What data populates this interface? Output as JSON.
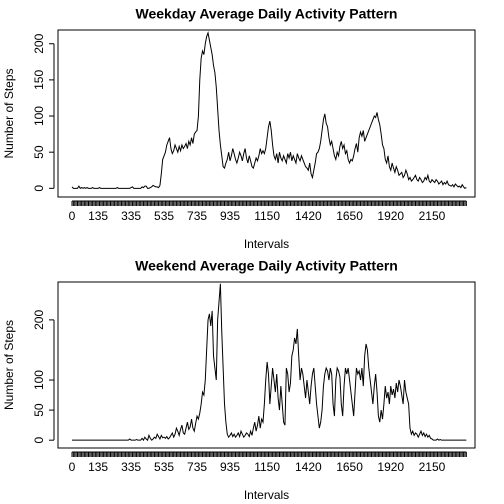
{
  "chart_data": [
    {
      "type": "line",
      "title": "Weekday Average Daily Activity Pattern",
      "x_label": "Intervals",
      "y_label": "Number of Steps",
      "color": "#000000",
      "categories": [
        "0",
        null,
        null,
        null,
        null,
        null,
        null,
        null,
        null,
        null,
        null,
        null,
        null,
        null,
        null,
        null,
        null,
        null,
        null,
        "135",
        null,
        null,
        null,
        null,
        null,
        null,
        null,
        null,
        null,
        null,
        null,
        null,
        null,
        null,
        null,
        null,
        null,
        null,
        null,
        null,
        null,
        null,
        null,
        "335",
        null,
        null,
        null,
        null,
        null,
        null,
        null,
        null,
        null,
        null,
        null,
        null,
        null,
        null,
        null,
        null,
        null,
        null,
        null,
        null,
        null,
        null,
        null,
        "535",
        null,
        null,
        null,
        null,
        null,
        null,
        null,
        null,
        null,
        null,
        null,
        null,
        null,
        null,
        null,
        null,
        null,
        null,
        null,
        null,
        null,
        null,
        null,
        "735",
        null,
        null,
        null,
        null,
        null,
        null,
        null,
        null,
        null,
        null,
        null,
        null,
        null,
        null,
        null,
        null,
        null,
        null,
        null,
        null,
        null,
        null,
        null,
        "935",
        null,
        null,
        null,
        null,
        null,
        null,
        null,
        null,
        null,
        null,
        null,
        null,
        null,
        null,
        null,
        null,
        null,
        null,
        null,
        null,
        null,
        null,
        null,
        null,
        null,
        null,
        "1150",
        null,
        null,
        null,
        null,
        null,
        null,
        null,
        null,
        null,
        null,
        null,
        null,
        null,
        null,
        null,
        null,
        null,
        null,
        null,
        null,
        null,
        null,
        null,
        null,
        null,
        null,
        null,
        null,
        null,
        "1420",
        null,
        null,
        null,
        null,
        null,
        null,
        null,
        null,
        null,
        null,
        null,
        null,
        null,
        null,
        null,
        null,
        null,
        null,
        null,
        null,
        null,
        null,
        null,
        null,
        null,
        null,
        null,
        null,
        null,
        "1650",
        null,
        null,
        null,
        null,
        null,
        null,
        null,
        null,
        null,
        null,
        null,
        null,
        null,
        null,
        null,
        null,
        null,
        null,
        null,
        null,
        null,
        null,
        null,
        null,
        null,
        null,
        null,
        null,
        null,
        "1920",
        null,
        null,
        null,
        null,
        null,
        null,
        null,
        null,
        null,
        null,
        null,
        null,
        null,
        null,
        null,
        null,
        null,
        null,
        null,
        null,
        null,
        null,
        null,
        null,
        null,
        null,
        null,
        null,
        null,
        "2150",
        null,
        null,
        null,
        null,
        null,
        null,
        null,
        null,
        null,
        null,
        null,
        null,
        null,
        null,
        null,
        null,
        null,
        null,
        null,
        null,
        null,
        null,
        null,
        null,
        null
      ],
      "values": [
        2,
        0,
        0,
        0,
        0,
        3,
        0,
        1,
        0,
        1,
        0,
        1,
        0,
        0,
        0,
        1,
        0,
        0,
        0,
        0,
        1,
        0,
        0,
        0,
        0,
        0,
        0,
        0,
        0,
        0,
        0,
        0,
        0,
        1,
        0,
        0,
        0,
        0,
        0,
        0,
        0,
        0,
        0,
        1,
        2,
        0,
        0,
        0,
        0,
        0,
        0,
        2,
        1,
        3,
        3,
        0,
        0,
        1,
        2,
        4,
        3,
        2,
        2,
        1,
        4,
        20,
        40,
        45,
        50,
        60,
        65,
        70,
        55,
        48,
        52,
        60,
        55,
        50,
        58,
        52,
        60,
        55,
        58,
        62,
        55,
        65,
        60,
        70,
        62,
        75,
        78,
        80,
        100,
        150,
        180,
        190,
        185,
        200,
        210,
        215,
        205,
        195,
        185,
        170,
        160,
        140,
        110,
        80,
        60,
        45,
        30,
        28,
        35,
        40,
        50,
        38,
        45,
        55,
        48,
        40,
        35,
        42,
        50,
        45,
        38,
        48,
        55,
        42,
        35,
        45,
        38,
        30,
        28,
        35,
        42,
        38,
        45,
        55,
        48,
        52,
        48,
        55,
        70,
        85,
        93,
        80,
        60,
        45,
        40,
        48,
        35,
        50,
        42,
        38,
        45,
        40,
        35,
        48,
        42,
        50,
        38,
        45,
        40,
        35,
        48,
        42,
        38,
        45,
        40,
        35,
        30,
        28,
        25,
        35,
        20,
        15,
        25,
        35,
        48,
        50,
        55,
        65,
        80,
        95,
        103,
        90,
        85,
        70,
        60,
        65,
        55,
        45,
        40,
        50,
        45,
        58,
        65,
        55,
        60,
        48,
        52,
        40,
        35,
        40,
        38,
        45,
        55,
        62,
        50,
        70,
        78,
        72,
        80,
        65,
        70,
        75,
        80,
        85,
        90,
        95,
        100,
        98,
        105,
        95,
        88,
        75,
        60,
        55,
        40,
        35,
        45,
        30,
        25,
        35,
        28,
        22,
        30,
        25,
        18,
        20,
        22,
        15,
        18,
        25,
        20,
        12,
        15,
        10,
        12,
        15,
        18,
        12,
        10,
        15,
        12,
        8,
        10,
        15,
        12,
        18,
        10,
        8,
        12,
        10,
        8,
        12,
        10,
        6,
        8,
        10,
        5,
        8,
        6,
        10,
        5,
        4,
        3,
        5,
        2,
        6,
        4,
        2,
        3,
        1,
        5,
        2,
        0,
        1
      ],
      "ylim": [
        -12,
        219
      ],
      "yticks": [
        0,
        50,
        100,
        150,
        200
      ]
    },
    {
      "type": "line",
      "title": "Weekend Average Daily Activity Pattern",
      "x_label": "Intervals",
      "y_label": "Number of Steps",
      "color": "#000000",
      "categories": [
        "0",
        null,
        null,
        null,
        null,
        null,
        null,
        null,
        null,
        null,
        null,
        null,
        null,
        null,
        null,
        null,
        null,
        null,
        null,
        "135",
        null,
        null,
        null,
        null,
        null,
        null,
        null,
        null,
        null,
        null,
        null,
        null,
        null,
        null,
        null,
        null,
        null,
        null,
        null,
        null,
        null,
        null,
        null,
        "335",
        null,
        null,
        null,
        null,
        null,
        null,
        null,
        null,
        null,
        null,
        null,
        null,
        null,
        null,
        null,
        null,
        null,
        null,
        null,
        null,
        null,
        null,
        null,
        "535",
        null,
        null,
        null,
        null,
        null,
        null,
        null,
        null,
        null,
        null,
        null,
        null,
        null,
        null,
        null,
        null,
        null,
        null,
        null,
        null,
        null,
        null,
        null,
        "735",
        null,
        null,
        null,
        null,
        null,
        null,
        null,
        null,
        null,
        null,
        null,
        null,
        null,
        null,
        null,
        null,
        null,
        null,
        null,
        null,
        null,
        null,
        null,
        "935",
        null,
        null,
        null,
        null,
        null,
        null,
        null,
        null,
        null,
        null,
        null,
        null,
        null,
        null,
        null,
        null,
        null,
        null,
        null,
        null,
        null,
        null,
        null,
        null,
        null,
        null,
        "1150",
        null,
        null,
        null,
        null,
        null,
        null,
        null,
        null,
        null,
        null,
        null,
        null,
        null,
        null,
        null,
        null,
        null,
        null,
        null,
        null,
        null,
        null,
        null,
        null,
        null,
        null,
        null,
        null,
        null,
        "1420",
        null,
        null,
        null,
        null,
        null,
        null,
        null,
        null,
        null,
        null,
        null,
        null,
        null,
        null,
        null,
        null,
        null,
        null,
        null,
        null,
        null,
        null,
        null,
        null,
        null,
        null,
        null,
        null,
        null,
        "1650",
        null,
        null,
        null,
        null,
        null,
        null,
        null,
        null,
        null,
        null,
        null,
        null,
        null,
        null,
        null,
        null,
        null,
        null,
        null,
        null,
        null,
        null,
        null,
        null,
        null,
        null,
        null,
        null,
        null,
        "1920",
        null,
        null,
        null,
        null,
        null,
        null,
        null,
        null,
        null,
        null,
        null,
        null,
        null,
        null,
        null,
        null,
        null,
        null,
        null,
        null,
        null,
        null,
        null,
        null,
        null,
        null,
        null,
        null,
        null,
        "2150",
        null,
        null,
        null,
        null,
        null,
        null,
        null,
        null,
        null,
        null,
        null,
        null,
        null,
        null,
        null,
        null,
        null,
        null,
        null,
        null,
        null,
        null,
        null,
        null,
        null
      ],
      "values": [
        0,
        0,
        0,
        0,
        0,
        0,
        0,
        0,
        0,
        0,
        0,
        0,
        0,
        0,
        0,
        0,
        0,
        0,
        0,
        0,
        0,
        0,
        0,
        0,
        0,
        0,
        0,
        0,
        0,
        0,
        0,
        0,
        0,
        0,
        0,
        0,
        0,
        0,
        0,
        0,
        0,
        0,
        2,
        0,
        0,
        0,
        0,
        1,
        0,
        0,
        0,
        3,
        0,
        5,
        2,
        0,
        8,
        3,
        0,
        2,
        5,
        3,
        10,
        6,
        2,
        8,
        4,
        5,
        3,
        6,
        2,
        4,
        8,
        12,
        5,
        10,
        20,
        15,
        8,
        18,
        25,
        12,
        10,
        20,
        30,
        18,
        22,
        35,
        20,
        15,
        28,
        40,
        35,
        45,
        60,
        80,
        75,
        100,
        150,
        200,
        210,
        190,
        215,
        140,
        120,
        100,
        200,
        230,
        260,
        180,
        120,
        60,
        30,
        10,
        5,
        8,
        12,
        6,
        10,
        5,
        8,
        12,
        6,
        15,
        10,
        5,
        8,
        12,
        10,
        6,
        15,
        8,
        20,
        30,
        15,
        25,
        40,
        20,
        35,
        30,
        60,
        100,
        130,
        110,
        60,
        90,
        120,
        100,
        80,
        110,
        70,
        50,
        90,
        60,
        30,
        25,
        120,
        110,
        80,
        95,
        140,
        150,
        170,
        160,
        185,
        140,
        100,
        120,
        110,
        90,
        70,
        100,
        80,
        60,
        90,
        110,
        120,
        90,
        60,
        40,
        20,
        30,
        50,
        90,
        110,
        120,
        115,
        100,
        120,
        110,
        60,
        40,
        100,
        120,
        115,
        105,
        60,
        40,
        90,
        120,
        110,
        120,
        100,
        80,
        60,
        40,
        80,
        120,
        110,
        115,
        100,
        120,
        90,
        140,
        160,
        150,
        120,
        100,
        80,
        60,
        90,
        110,
        80,
        40,
        30,
        50,
        35,
        60,
        90,
        70,
        80,
        60,
        90,
        75,
        85,
        70,
        95,
        80,
        100,
        90,
        75,
        60,
        100,
        80,
        70,
        60,
        20,
        10,
        15,
        8,
        12,
        10,
        5,
        10,
        15,
        8,
        12,
        6,
        10,
        5,
        8,
        3,
        2,
        0,
        0,
        0,
        2,
        0,
        1,
        0,
        0,
        0,
        0,
        0,
        0,
        0,
        0,
        0,
        0,
        0,
        0,
        0,
        0,
        0,
        0,
        0,
        0,
        0
      ],
      "ylim": [
        -13,
        263
      ],
      "yticks": [
        0,
        50,
        100,
        200
      ]
    }
  ]
}
